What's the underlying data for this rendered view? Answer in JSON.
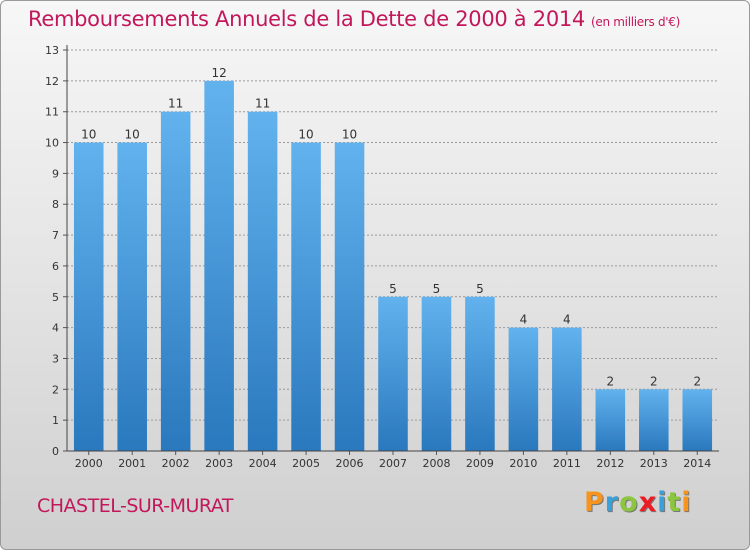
{
  "chart_data": {
    "type": "bar",
    "title": "Remboursements Annuels de la Dette de 2000 à 2014",
    "unit_note": "(en milliers d'€)",
    "categories": [
      "2000",
      "2001",
      "2002",
      "2003",
      "2004",
      "2005",
      "2006",
      "2007",
      "2008",
      "2009",
      "2010",
      "2011",
      "2012",
      "2013",
      "2014"
    ],
    "values": [
      10,
      10,
      11,
      12,
      11,
      10,
      10,
      5,
      5,
      5,
      4,
      4,
      2,
      2,
      2
    ],
    "ylim": [
      0,
      13
    ],
    "yticks": [
      0,
      1,
      2,
      3,
      4,
      5,
      6,
      7,
      8,
      9,
      10,
      11,
      12,
      13
    ],
    "xlabel": "",
    "ylabel": "",
    "grid": true
  },
  "footer": {
    "commune": "CHASTEL-SUR-MURAT",
    "logo_letters": [
      "P",
      "r",
      "o",
      "x",
      "i",
      "t",
      "i"
    ],
    "logo_colors": [
      "#f7941d",
      "#3aa0d8",
      "#8cc63f",
      "#ed1c24",
      "#3aa0d8",
      "#8cc63f",
      "#f7941d"
    ]
  },
  "colors": {
    "title": "#c2185b",
    "bar_top": "#62b2ee",
    "bar_bottom": "#2a78bd",
    "grid": "#9a9a9a"
  }
}
